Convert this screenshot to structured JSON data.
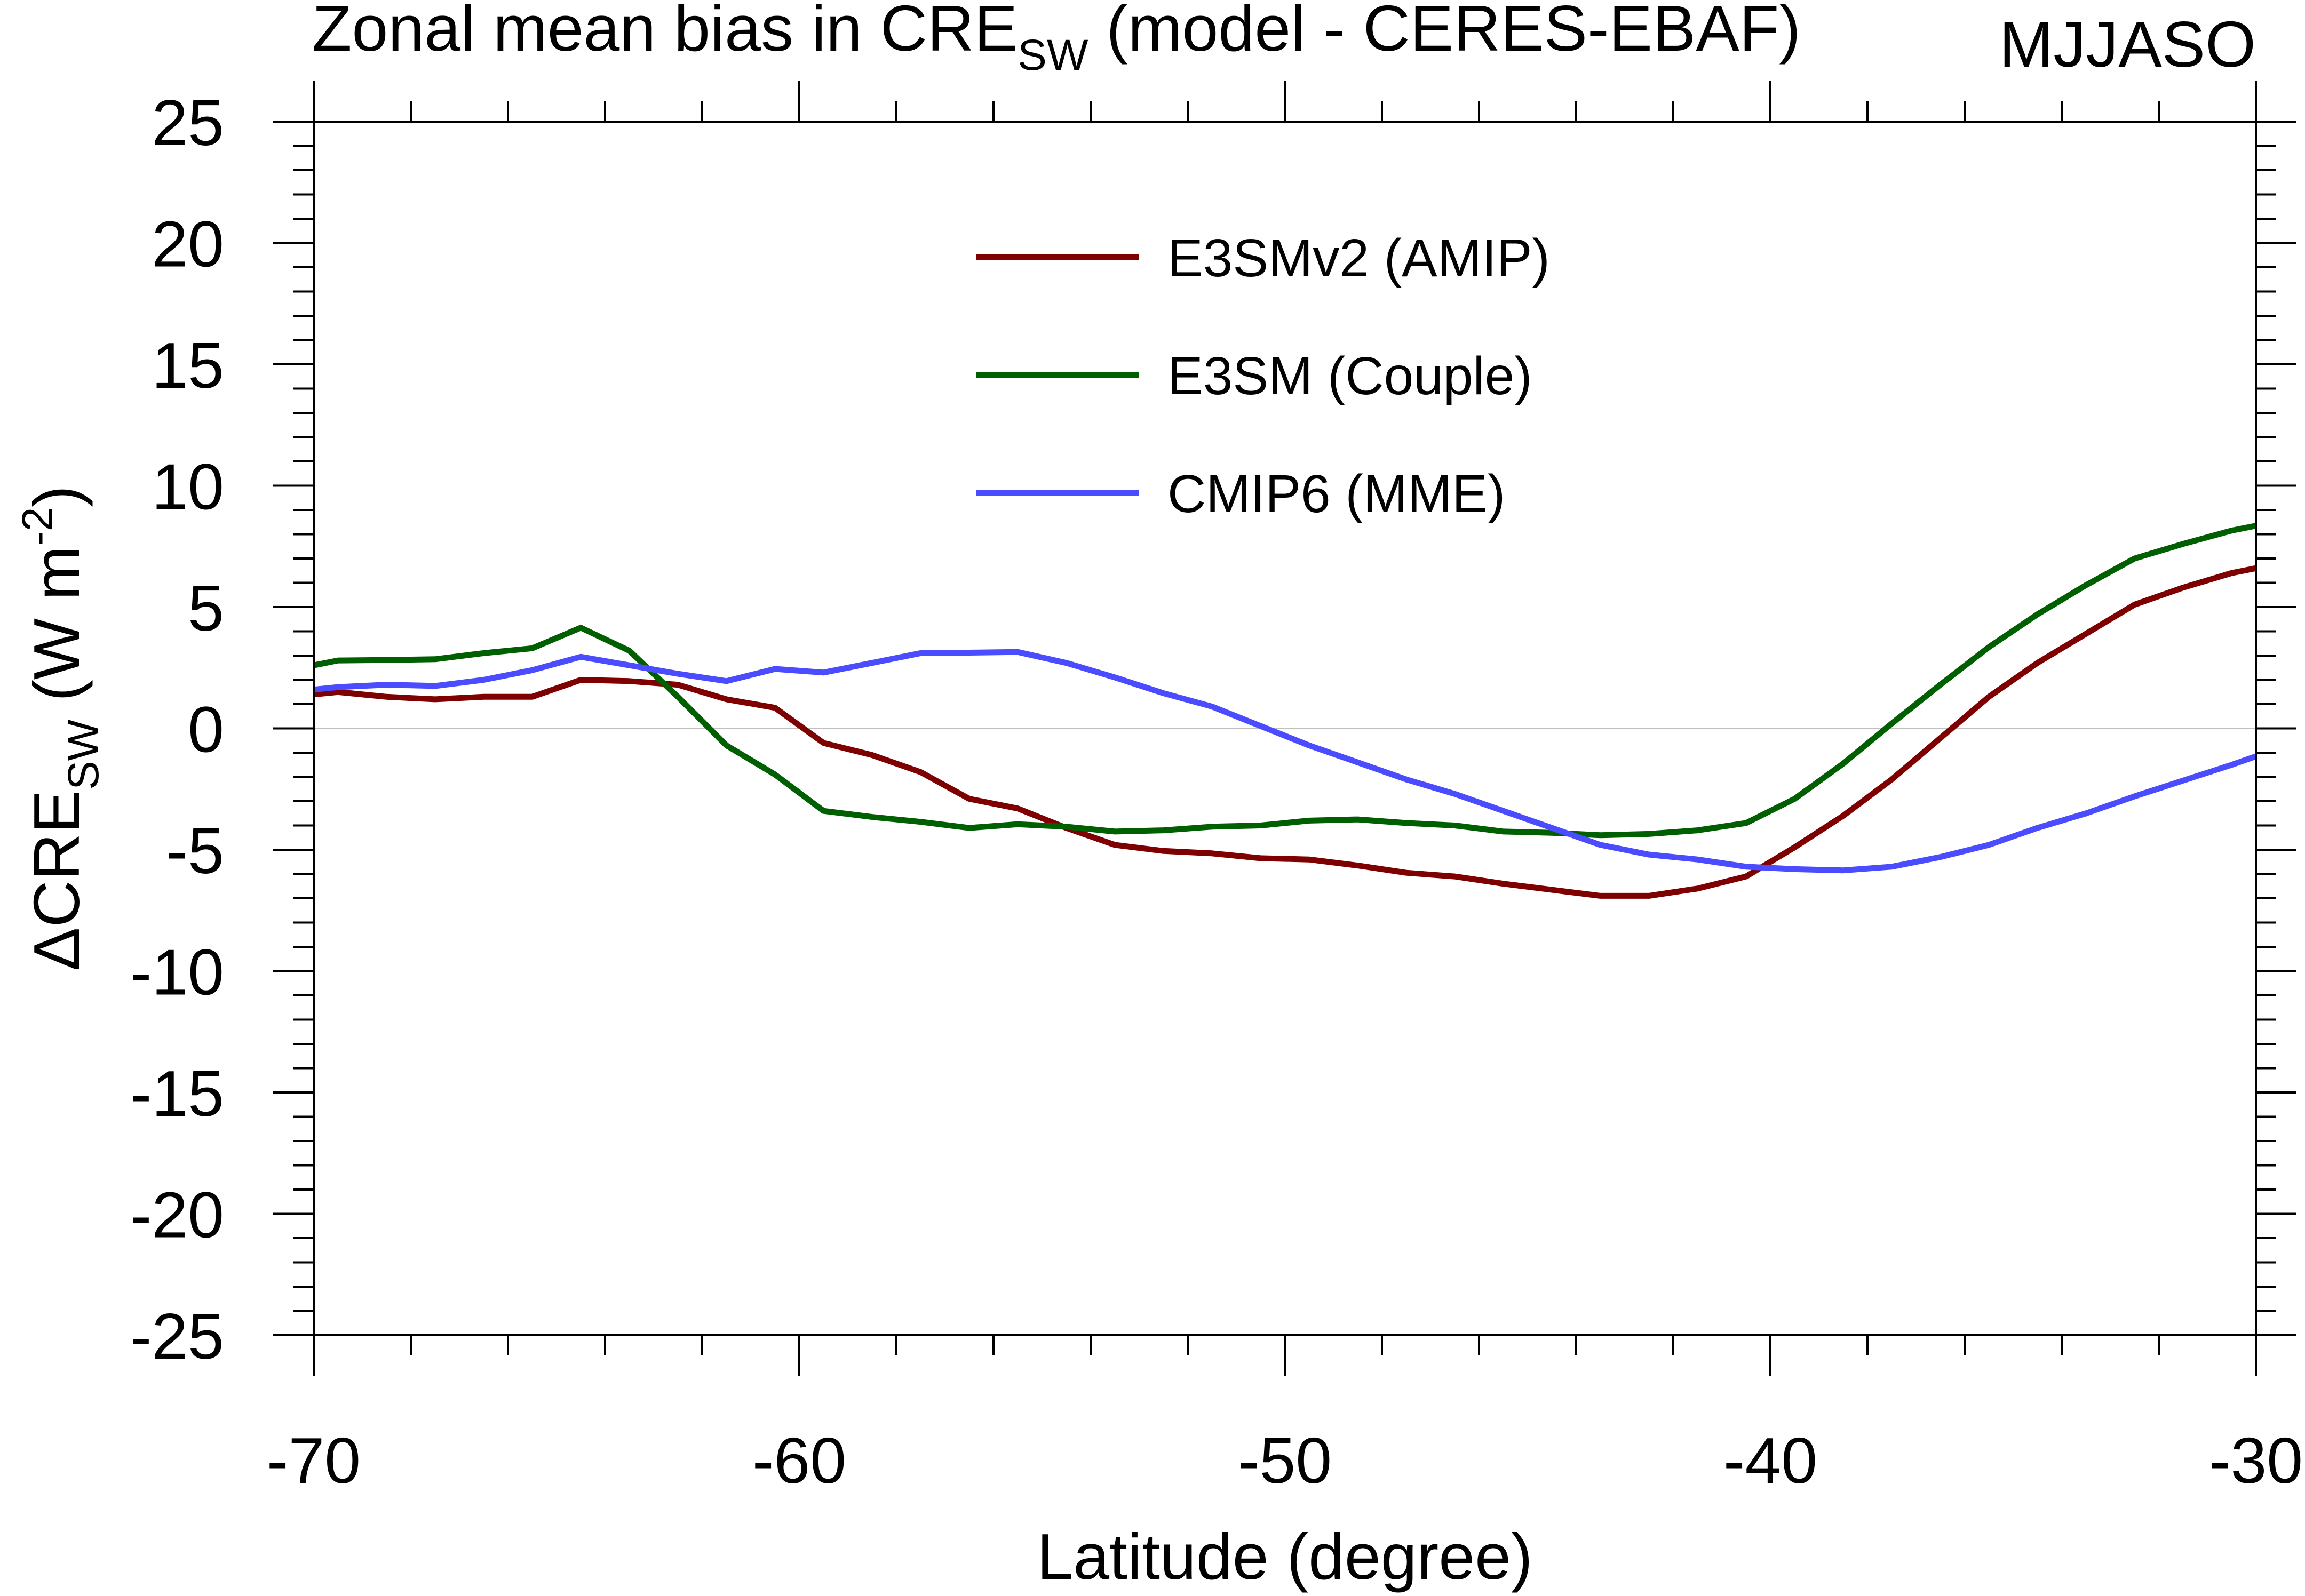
{
  "chart_data": {
    "type": "line",
    "title_prefix": "Zonal mean bias in CRE",
    "title_subscript": "SW",
    "title_suffix": " (model - CERES-EBAF)",
    "season": "MJJASO",
    "xlabel": "Latitude (degree)",
    "ylabel_prefix": "ΔCRE",
    "ylabel_subscript": "SW",
    "ylabel_suffix": " (W m",
    "ylabel_superscript": "-2",
    "ylabel_close": ")",
    "xlim": [
      -70,
      -30
    ],
    "ylim": [
      -25,
      25
    ],
    "xticks": [
      -70,
      -60,
      -50,
      -40,
      -30
    ],
    "xtick_labels": [
      "-70",
      "-60",
      "-50",
      "-40",
      "-30"
    ],
    "yticks": [
      -25,
      -20,
      -15,
      -10,
      -5,
      0,
      5,
      10,
      15,
      20,
      25
    ],
    "ytick_labels": [
      "-25",
      "-20",
      "-15",
      "-10",
      "-5",
      "0",
      "5",
      "10",
      "15",
      "20",
      "25"
    ],
    "zero_line": true,
    "legend_position": "top-center",
    "series": [
      {
        "name": "E3SMv2 (AMIP)",
        "color": "#7f0000",
        "x": [
          -70,
          -69.5,
          -68.5,
          -67.5,
          -66.5,
          -65.5,
          -64.5,
          -63.5,
          -62.5,
          -61.5,
          -60.5,
          -59.5,
          -58.5,
          -57.5,
          -56.5,
          -55.5,
          -54.5,
          -53.5,
          -52.5,
          -51.5,
          -50.5,
          -49.5,
          -48.5,
          -47.5,
          -46.5,
          -45.5,
          -44.5,
          -43.5,
          -42.5,
          -41.5,
          -40.5,
          -39.5,
          -38.5,
          -37.5,
          -36.5,
          -35.5,
          -34.5,
          -33.5,
          -32.5,
          -31.5,
          -30.5,
          -30
        ],
        "values": [
          1.4,
          1.5,
          1.3,
          1.2,
          1.3,
          1.3,
          2.0,
          1.95,
          1.8,
          1.2,
          0.85,
          -0.6,
          -1.1,
          -1.8,
          -2.9,
          -3.3,
          -4.1,
          -4.8,
          -5.05,
          -5.15,
          -5.35,
          -5.4,
          -5.65,
          -5.95,
          -6.1,
          -6.4,
          -6.65,
          -6.9,
          -6.9,
          -6.6,
          -6.1,
          -4.9,
          -3.6,
          -2.1,
          -0.4,
          1.3,
          2.7,
          3.9,
          5.1,
          5.8,
          6.4,
          6.6
        ]
      },
      {
        "name": "E3SM (Couple)",
        "color": "#005f00",
        "x": [
          -70,
          -69.5,
          -68.5,
          -67.5,
          -66.5,
          -65.5,
          -64.5,
          -63.5,
          -62.5,
          -61.5,
          -60.5,
          -59.5,
          -58.5,
          -57.5,
          -56.5,
          -55.5,
          -54.5,
          -53.5,
          -52.5,
          -51.5,
          -50.5,
          -49.5,
          -48.5,
          -47.5,
          -46.5,
          -45.5,
          -44.5,
          -43.5,
          -42.5,
          -41.5,
          -40.5,
          -39.5,
          -38.5,
          -37.5,
          -36.5,
          -35.5,
          -34.5,
          -33.5,
          -32.5,
          -31.5,
          -30.5,
          -30
        ],
        "values": [
          2.6,
          2.8,
          2.82,
          2.85,
          3.1,
          3.3,
          4.15,
          3.2,
          1.3,
          -0.7,
          -1.9,
          -3.4,
          -3.65,
          -3.85,
          -4.1,
          -3.95,
          -4.05,
          -4.25,
          -4.2,
          -4.05,
          -4.0,
          -3.8,
          -3.75,
          -3.9,
          -4.0,
          -4.25,
          -4.3,
          -4.4,
          -4.35,
          -4.2,
          -3.9,
          -2.9,
          -1.45,
          0.2,
          1.8,
          3.35,
          4.7,
          5.9,
          7.0,
          7.6,
          8.15,
          8.35
        ]
      },
      {
        "name": "CMIP6 (MME)",
        "color": "#4b4bff",
        "x": [
          -70,
          -69.5,
          -68.5,
          -67.5,
          -66.5,
          -65.5,
          -64.5,
          -63.5,
          -62.5,
          -61.5,
          -60.5,
          -59.5,
          -58.5,
          -57.5,
          -56.5,
          -55.5,
          -54.5,
          -53.5,
          -52.5,
          -51.5,
          -50.5,
          -49.5,
          -48.5,
          -47.5,
          -46.5,
          -45.5,
          -44.5,
          -43.5,
          -42.5,
          -41.5,
          -40.5,
          -39.5,
          -38.5,
          -37.5,
          -36.5,
          -35.5,
          -34.5,
          -33.5,
          -32.5,
          -31.5,
          -30.5,
          -30
        ],
        "values": [
          1.6,
          1.7,
          1.8,
          1.75,
          2.0,
          2.4,
          2.95,
          2.6,
          2.25,
          1.95,
          2.45,
          2.3,
          2.7,
          3.1,
          3.12,
          3.15,
          2.7,
          2.1,
          1.45,
          0.9,
          0.1,
          -0.7,
          -1.4,
          -2.1,
          -2.7,
          -3.4,
          -4.1,
          -4.8,
          -5.2,
          -5.4,
          -5.7,
          -5.8,
          -5.85,
          -5.7,
          -5.3,
          -4.8,
          -4.1,
          -3.5,
          -2.8,
          -2.15,
          -1.5,
          -1.15
        ]
      }
    ]
  }
}
